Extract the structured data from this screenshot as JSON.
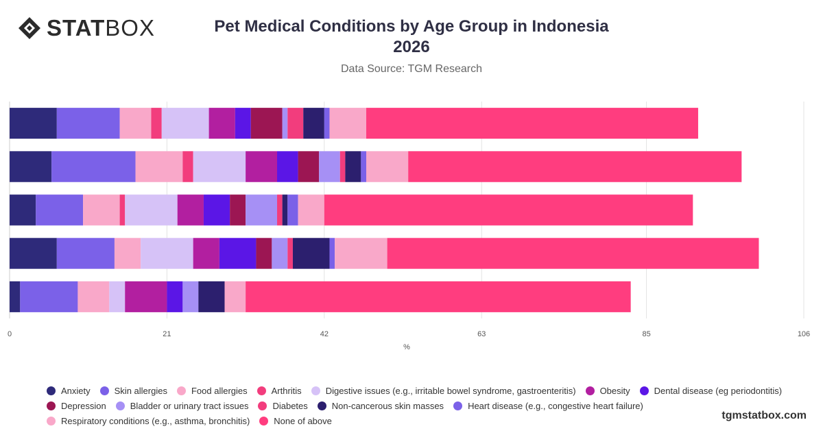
{
  "brand": {
    "logo_bold": "STAT",
    "logo_light": "BOX",
    "footer": "tgmstatbox.com"
  },
  "chart_data": {
    "type": "bar",
    "orientation": "horizontal",
    "stacked": true,
    "title_line1": "Pet Medical Conditions by Age Group in Indonesia",
    "title_line2": "2026",
    "subtitle": "Data Source: TGM Research",
    "xlabel": "%",
    "xlim": [
      0,
      106
    ],
    "xticks": [
      0,
      21,
      42,
      63,
      85,
      106
    ],
    "grid": true,
    "legend_position": "bottom",
    "categories": [
      "",
      "",
      "",
      "",
      ""
    ],
    "series": [
      {
        "name": "Anxiety",
        "color": "#2e2a7a",
        "values": [
          6.3,
          5.6,
          3.5,
          6.3,
          1.4
        ]
      },
      {
        "name": "Skin allergies",
        "color": "#7b61e8",
        "values": [
          8.4,
          11.2,
          6.3,
          7.7,
          7.7
        ]
      },
      {
        "name": "Food allergies",
        "color": "#f9a8c9",
        "values": [
          4.2,
          6.3,
          4.9,
          3.5,
          4.2
        ]
      },
      {
        "name": "Arthritis",
        "color": "#f23d7d",
        "values": [
          1.4,
          1.4,
          0.7,
          0,
          0
        ]
      },
      {
        "name": "Digestive issues (e.g., irritable bowel syndrome, gastroenteritis)",
        "color": "#d6c2f7",
        "values": [
          6.3,
          7.0,
          7.0,
          7.0,
          2.1
        ]
      },
      {
        "name": "Obesity",
        "color": "#b21fa0",
        "values": [
          3.5,
          4.2,
          3.5,
          3.5,
          5.6
        ]
      },
      {
        "name": "Dental disease (eg periodontitis)",
        "color": "#5b16e6",
        "values": [
          2.1,
          2.8,
          3.5,
          4.9,
          2.1
        ]
      },
      {
        "name": "Depression",
        "color": "#9c1653",
        "values": [
          4.2,
          2.8,
          2.1,
          2.1,
          0
        ]
      },
      {
        "name": "Bladder or urinary tract issues",
        "color": "#a690f5",
        "values": [
          0.7,
          2.8,
          4.2,
          2.1,
          2.1
        ]
      },
      {
        "name": "Diabetes",
        "color": "#f23d7d",
        "values": [
          2.1,
          0.7,
          0.7,
          0.7,
          0
        ]
      },
      {
        "name": "Non-cancerous skin masses",
        "color": "#2c1f6e",
        "values": [
          2.8,
          2.1,
          0.7,
          4.9,
          3.5
        ]
      },
      {
        "name": "Heart disease (e.g., congestive heart failure)",
        "color": "#7b61e8",
        "values": [
          0.7,
          0.7,
          1.4,
          0.7,
          0
        ]
      },
      {
        "name": "Respiratory conditions (e.g., asthma, bronchitis)",
        "color": "#f9a8c9",
        "values": [
          4.9,
          5.6,
          3.5,
          7.0,
          2.8
        ]
      },
      {
        "name": "None of above",
        "color": "#ff3d7f",
        "values": [
          44.3,
          44.5,
          49.2,
          49.6,
          51.4
        ]
      }
    ]
  }
}
